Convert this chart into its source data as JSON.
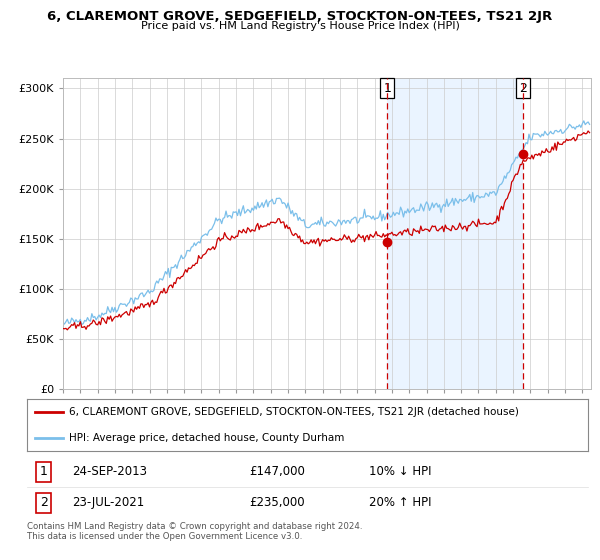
{
  "title": "6, CLAREMONT GROVE, SEDGEFIELD, STOCKTON-ON-TEES, TS21 2JR",
  "subtitle": "Price paid vs. HM Land Registry's House Price Index (HPI)",
  "legend_line1": "6, CLAREMONT GROVE, SEDGEFIELD, STOCKTON-ON-TEES, TS21 2JR (detached house)",
  "legend_line2": "HPI: Average price, detached house, County Durham",
  "point1_date": "24-SEP-2013",
  "point1_price": "£147,000",
  "point1_hpi": "10% ↓ HPI",
  "point2_date": "23-JUL-2021",
  "point2_price": "£235,000",
  "point2_hpi": "20% ↑ HPI",
  "footer": "Contains HM Land Registry data © Crown copyright and database right 2024.\nThis data is licensed under the Open Government Licence v3.0.",
  "hpi_color": "#7bbfea",
  "price_color": "#cc0000",
  "shade_color": "#ddeeff",
  "background_color": "#ffffff",
  "grid_color": "#cccccc",
  "ylim": [
    0,
    310000
  ],
  "yticks": [
    0,
    50000,
    100000,
    150000,
    200000,
    250000,
    300000
  ],
  "ytick_labels": [
    "£0",
    "£50K",
    "£100K",
    "£150K",
    "£200K",
    "£250K",
    "£300K"
  ],
  "point1_x": 2013.73,
  "point1_y": 147000,
  "point2_x": 2021.55,
  "point2_y": 235000,
  "xmin": 1995.0,
  "xmax": 2025.5
}
